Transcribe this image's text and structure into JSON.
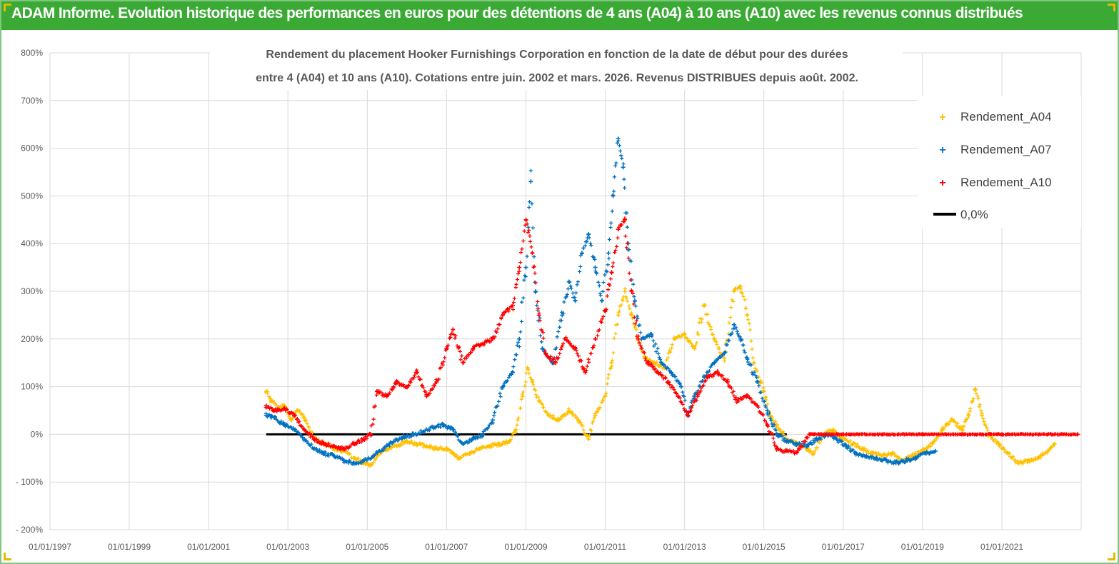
{
  "page": {
    "title": "ADAM Informe. Evolution historique des performances en euros pour des détentions de 4 ans (A04) à 10 ans (A10) avec les revenus connus distribués"
  },
  "colors": {
    "banner": "#3aaa35",
    "a04": "#ffc000",
    "a07": "#0070c0",
    "a10": "#ff0000",
    "zero": "#000000",
    "grid": "#d9d9d9"
  },
  "chart_data": {
    "type": "scatter",
    "subtitle_lines": [
      "Rendement du placement Hooker Furnishings Corporation en fonction de la date de début pour des durées",
      "entre 4 (A04) et 10 ans (A10). Cotations entre juin. 2002 et mars. 2026. Revenus DISTRIBUES depuis août. 2002."
    ],
    "x_axis": {
      "type": "date",
      "min": "1997-01-01",
      "max": "2023-01-01",
      "ticks": [
        "01/01/1997",
        "01/01/1999",
        "01/01/2001",
        "01/01/2003",
        "01/01/2005",
        "01/01/2007",
        "01/01/2009",
        "01/01/2011",
        "01/01/2013",
        "01/01/2015",
        "01/01/2017",
        "01/01/2019",
        "01/01/2021"
      ]
    },
    "y_axis": {
      "unit": "%",
      "min": -200,
      "max": 800,
      "ticks": [
        "- 200%",
        "- 100%",
        "0%",
        "100%",
        "200%",
        "300%",
        "400%",
        "500%",
        "600%",
        "700%",
        "800%"
      ]
    },
    "grid": true,
    "legend_position": "top-right",
    "legend": [
      "Rendement_A04",
      "Rendement_A07",
      "Rendement_A10",
      "0,0%"
    ],
    "series": [
      {
        "name": "Rendement_A04",
        "marker": "+",
        "color": "#ffc000",
        "points": [
          [
            "2002-06-15",
            90
          ],
          [
            "2002-08-01",
            70
          ],
          [
            "2002-10-01",
            55
          ],
          [
            "2002-12-01",
            60
          ],
          [
            "2003-02-01",
            30
          ],
          [
            "2003-04-01",
            50
          ],
          [
            "2003-06-01",
            35
          ],
          [
            "2003-09-01",
            -10
          ],
          [
            "2003-12-01",
            -20
          ],
          [
            "2004-03-01",
            -30
          ],
          [
            "2004-06-01",
            -35
          ],
          [
            "2004-09-01",
            -50
          ],
          [
            "2004-12-01",
            -60
          ],
          [
            "2005-02-01",
            -65
          ],
          [
            "2005-04-01",
            -45
          ],
          [
            "2005-07-01",
            -30
          ],
          [
            "2005-10-01",
            -25
          ],
          [
            "2006-01-01",
            -15
          ],
          [
            "2006-04-01",
            -20
          ],
          [
            "2006-07-01",
            -25
          ],
          [
            "2006-10-01",
            -30
          ],
          [
            "2007-01-01",
            -30
          ],
          [
            "2007-03-01",
            -40
          ],
          [
            "2007-05-01",
            -50
          ],
          [
            "2007-08-01",
            -40
          ],
          [
            "2007-11-01",
            -30
          ],
          [
            "2008-02-01",
            -25
          ],
          [
            "2008-05-01",
            -20
          ],
          [
            "2008-08-01",
            -15
          ],
          [
            "2008-10-01",
            10
          ],
          [
            "2008-12-01",
            80
          ],
          [
            "2009-01-15",
            140
          ],
          [
            "2009-03-01",
            110
          ],
          [
            "2009-05-01",
            70
          ],
          [
            "2009-08-01",
            40
          ],
          [
            "2009-11-01",
            30
          ],
          [
            "2010-02-01",
            50
          ],
          [
            "2010-05-01",
            30
          ],
          [
            "2010-08-01",
            -10
          ],
          [
            "2010-10-01",
            40
          ],
          [
            "2011-01-01",
            80
          ],
          [
            "2011-03-01",
            150
          ],
          [
            "2011-05-01",
            250
          ],
          [
            "2011-07-01",
            300
          ],
          [
            "2011-09-01",
            250
          ],
          [
            "2011-11-01",
            200
          ],
          [
            "2012-01-01",
            160
          ],
          [
            "2012-04-01",
            150
          ],
          [
            "2012-07-01",
            140
          ],
          [
            "2012-10-01",
            200
          ],
          [
            "2013-01-01",
            210
          ],
          [
            "2013-04-01",
            180
          ],
          [
            "2013-07-01",
            270
          ],
          [
            "2013-10-01",
            200
          ],
          [
            "2014-01-01",
            160
          ],
          [
            "2014-04-01",
            300
          ],
          [
            "2014-06-01",
            310
          ],
          [
            "2014-08-01",
            250
          ],
          [
            "2014-10-01",
            150
          ],
          [
            "2015-01-01",
            90
          ],
          [
            "2015-03-01",
            40
          ],
          [
            "2015-05-01",
            20
          ],
          [
            "2015-08-01",
            -10
          ],
          [
            "2015-11-01",
            -20
          ],
          [
            "2016-02-01",
            -30
          ],
          [
            "2016-04-01",
            -40
          ],
          [
            "2016-07-01",
            0
          ],
          [
            "2016-10-01",
            10
          ],
          [
            "2017-01-01",
            -10
          ],
          [
            "2017-04-01",
            -20
          ],
          [
            "2017-07-01",
            -30
          ],
          [
            "2017-10-01",
            -40
          ],
          [
            "2018-01-01",
            -45
          ],
          [
            "2018-04-01",
            -40
          ],
          [
            "2018-07-01",
            -55
          ],
          [
            "2018-10-01",
            -45
          ],
          [
            "2019-01-01",
            -35
          ],
          [
            "2019-04-01",
            -20
          ],
          [
            "2019-07-01",
            10
          ],
          [
            "2019-10-01",
            30
          ],
          [
            "2020-01-01",
            10
          ],
          [
            "2020-03-01",
            40
          ],
          [
            "2020-05-01",
            95
          ],
          [
            "2020-07-01",
            40
          ],
          [
            "2020-09-01",
            0
          ],
          [
            "2020-12-01",
            -20
          ],
          [
            "2021-03-01",
            -40
          ],
          [
            "2021-06-01",
            -60
          ],
          [
            "2021-09-01",
            -55
          ],
          [
            "2021-12-01",
            -50
          ],
          [
            "2022-03-01",
            -35
          ],
          [
            "2022-05-01",
            -20
          ]
        ]
      },
      {
        "name": "Rendement_A07",
        "marker": "+",
        "color": "#0070c0",
        "points": [
          [
            "2002-06-15",
            40
          ],
          [
            "2002-09-01",
            35
          ],
          [
            "2002-12-01",
            20
          ],
          [
            "2003-03-01",
            10
          ],
          [
            "2003-06-01",
            -10
          ],
          [
            "2003-09-01",
            -30
          ],
          [
            "2003-12-01",
            -40
          ],
          [
            "2004-03-01",
            -45
          ],
          [
            "2004-06-01",
            -55
          ],
          [
            "2004-09-01",
            -60
          ],
          [
            "2004-12-01",
            -55
          ],
          [
            "2005-03-01",
            -45
          ],
          [
            "2005-06-01",
            -30
          ],
          [
            "2005-09-01",
            -15
          ],
          [
            "2005-12-01",
            -5
          ],
          [
            "2006-03-01",
            0
          ],
          [
            "2006-06-01",
            5
          ],
          [
            "2006-09-01",
            15
          ],
          [
            "2006-12-01",
            20
          ],
          [
            "2007-03-01",
            10
          ],
          [
            "2007-06-01",
            -20
          ],
          [
            "2007-09-01",
            -10
          ],
          [
            "2007-12-01",
            0
          ],
          [
            "2008-03-01",
            30
          ],
          [
            "2008-06-01",
            100
          ],
          [
            "2008-09-01",
            130
          ],
          [
            "2008-11-01",
            200
          ],
          [
            "2009-01-01",
            350
          ],
          [
            "2009-02-15",
            530
          ],
          [
            "2009-04-01",
            300
          ],
          [
            "2009-06-01",
            180
          ],
          [
            "2009-09-01",
            150
          ],
          [
            "2009-12-01",
            250
          ],
          [
            "2010-02-01",
            320
          ],
          [
            "2010-04-01",
            280
          ],
          [
            "2010-06-01",
            380
          ],
          [
            "2010-08-01",
            420
          ],
          [
            "2010-10-01",
            350
          ],
          [
            "2010-12-01",
            280
          ],
          [
            "2011-02-01",
            380
          ],
          [
            "2011-03-15",
            500
          ],
          [
            "2011-05-01",
            620
          ],
          [
            "2011-06-15",
            560
          ],
          [
            "2011-08-01",
            400
          ],
          [
            "2011-10-01",
            280
          ],
          [
            "2011-12-01",
            200
          ],
          [
            "2012-03-01",
            210
          ],
          [
            "2012-06-01",
            150
          ],
          [
            "2012-09-01",
            130
          ],
          [
            "2012-12-01",
            100
          ],
          [
            "2013-02-01",
            40
          ],
          [
            "2013-04-01",
            80
          ],
          [
            "2013-07-01",
            120
          ],
          [
            "2013-10-01",
            150
          ],
          [
            "2014-01-01",
            170
          ],
          [
            "2014-04-01",
            230
          ],
          [
            "2014-06-01",
            200
          ],
          [
            "2014-08-01",
            160
          ],
          [
            "2014-11-01",
            110
          ],
          [
            "2015-02-01",
            50
          ],
          [
            "2015-05-01",
            0
          ],
          [
            "2015-08-01",
            -15
          ],
          [
            "2015-11-01",
            -20
          ],
          [
            "2016-02-01",
            -25
          ],
          [
            "2016-05-01",
            -10
          ],
          [
            "2016-08-01",
            0
          ],
          [
            "2016-11-01",
            -10
          ],
          [
            "2017-02-01",
            -25
          ],
          [
            "2017-05-01",
            -40
          ],
          [
            "2017-08-01",
            -45
          ],
          [
            "2017-11-01",
            -50
          ],
          [
            "2018-02-01",
            -55
          ],
          [
            "2018-05-01",
            -60
          ],
          [
            "2018-08-01",
            -55
          ],
          [
            "2018-11-01",
            -50
          ],
          [
            "2019-02-01",
            -40
          ],
          [
            "2019-05-01",
            -35
          ]
        ]
      },
      {
        "name": "Rendement_A10",
        "marker": "+",
        "color": "#ff0000",
        "points": [
          [
            "2002-06-15",
            60
          ],
          [
            "2002-09-01",
            50
          ],
          [
            "2002-12-01",
            55
          ],
          [
            "2003-03-01",
            40
          ],
          [
            "2003-06-01",
            10
          ],
          [
            "2003-09-01",
            -10
          ],
          [
            "2003-12-01",
            -20
          ],
          [
            "2004-03-01",
            -25
          ],
          [
            "2004-06-01",
            -30
          ],
          [
            "2004-09-01",
            -20
          ],
          [
            "2004-12-01",
            -10
          ],
          [
            "2005-02-01",
            0
          ],
          [
            "2005-04-01",
            90
          ],
          [
            "2005-07-01",
            80
          ],
          [
            "2005-10-01",
            110
          ],
          [
            "2006-01-01",
            100
          ],
          [
            "2006-04-01",
            130
          ],
          [
            "2006-07-01",
            80
          ],
          [
            "2006-10-01",
            110
          ],
          [
            "2007-01-01",
            180
          ],
          [
            "2007-03-01",
            220
          ],
          [
            "2007-06-01",
            150
          ],
          [
            "2007-09-01",
            180
          ],
          [
            "2007-12-01",
            190
          ],
          [
            "2008-03-01",
            200
          ],
          [
            "2008-06-01",
            250
          ],
          [
            "2008-09-01",
            270
          ],
          [
            "2008-11-01",
            350
          ],
          [
            "2009-01-01",
            450
          ],
          [
            "2009-03-01",
            380
          ],
          [
            "2009-05-01",
            250
          ],
          [
            "2009-07-01",
            170
          ],
          [
            "2009-10-01",
            150
          ],
          [
            "2010-01-01",
            200
          ],
          [
            "2010-04-01",
            180
          ],
          [
            "2010-07-01",
            130
          ],
          [
            "2010-10-01",
            200
          ],
          [
            "2011-01-01",
            260
          ],
          [
            "2011-03-01",
            340
          ],
          [
            "2011-05-01",
            430
          ],
          [
            "2011-07-01",
            450
          ],
          [
            "2011-09-01",
            300
          ],
          [
            "2011-11-01",
            200
          ],
          [
            "2012-02-01",
            150
          ],
          [
            "2012-05-01",
            130
          ],
          [
            "2012-08-01",
            110
          ],
          [
            "2012-11-01",
            80
          ],
          [
            "2013-02-01",
            40
          ],
          [
            "2013-05-01",
            80
          ],
          [
            "2013-08-01",
            120
          ],
          [
            "2013-11-01",
            130
          ],
          [
            "2014-02-01",
            110
          ],
          [
            "2014-05-01",
            70
          ],
          [
            "2014-08-01",
            80
          ],
          [
            "2014-11-01",
            60
          ],
          [
            "2015-02-01",
            20
          ],
          [
            "2015-05-01",
            -30
          ],
          [
            "2015-08-01",
            -35
          ],
          [
            "2015-11-01",
            -38
          ],
          [
            "2016-03-01",
            0
          ],
          [
            "2017-01-01",
            0
          ],
          [
            "2018-01-01",
            0
          ],
          [
            "2019-01-01",
            0
          ],
          [
            "2020-01-01",
            0
          ],
          [
            "2021-01-01",
            0
          ],
          [
            "2022-12-01",
            0
          ]
        ]
      },
      {
        "name": "0,0%",
        "type": "line",
        "color": "#000000",
        "points": [
          [
            "2002-06-15",
            0
          ],
          [
            "2015-08-01",
            0
          ]
        ]
      }
    ]
  }
}
